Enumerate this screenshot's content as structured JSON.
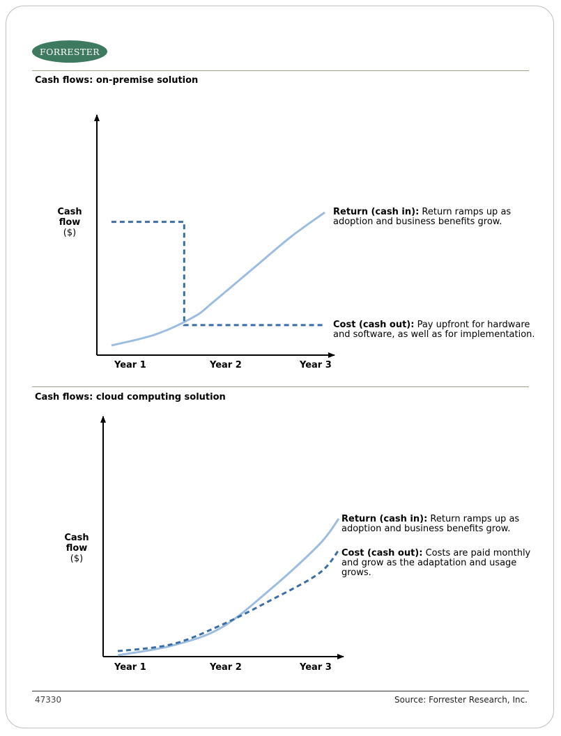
{
  "logo": {
    "text": "FORRESTER"
  },
  "colors": {
    "return": "#9dbde0",
    "cost": "#3a6ea5",
    "axis": "#000000",
    "brand": "#3e7a60"
  },
  "chart_data": [
    {
      "type": "line",
      "title": "Cash flows: on-premise solution",
      "ylabel_bold": "Cash flow",
      "ylabel_unit": "($)",
      "categories": [
        "Year 1",
        "Year 2",
        "Year 3"
      ],
      "xlim": [
        0.8,
        3.25
      ],
      "ylim": [
        0,
        100
      ],
      "series": [
        {
          "name": "Return (cash in)",
          "style": "solid",
          "x": [
            0.95,
            1.4,
            1.8,
            2.0,
            2.4,
            2.8,
            3.15
          ],
          "y": [
            2,
            10,
            23,
            34,
            58,
            82,
            100
          ]
        },
        {
          "name": "Cost (cash out)",
          "style": "dashed",
          "x": [
            0.95,
            1.7,
            1.7,
            3.15
          ],
          "y": [
            93,
            93,
            17,
            17
          ]
        }
      ],
      "annotations": [
        {
          "label": "Return (cash in):",
          "text_line1": " Return ramps up as",
          "text_line2": "adoption and business benefits grow."
        },
        {
          "label": "Cost (cash out):",
          "text_line1": " Pay upfront for hardware",
          "text_line2": "and software, as well as for implementation."
        }
      ]
    },
    {
      "type": "line",
      "title": "Cash flows: cloud computing solution",
      "ylabel_bold": "Cash flow",
      "ylabel_unit": "($)",
      "categories": [
        "Year 1",
        "Year 2",
        "Year 3"
      ],
      "xlim": [
        0.8,
        3.25
      ],
      "ylim": [
        0,
        100
      ],
      "series": [
        {
          "name": "Return (cash in)",
          "style": "solid",
          "x": [
            0.95,
            1.5,
            2.0,
            2.5,
            3.0,
            3.2
          ],
          "y": [
            0,
            7,
            20,
            48,
            81,
            100
          ]
        },
        {
          "name": "Cost (cash out)",
          "style": "dashed",
          "x": [
            0.95,
            1.5,
            2.0,
            2.5,
            3.0,
            3.2
          ],
          "y": [
            3,
            8,
            22,
            40,
            60,
            77
          ]
        }
      ],
      "annotations": [
        {
          "label": "Return (cash in):",
          "text_line1": " Return ramps up as",
          "text_line2": "adoption and business benefits grow."
        },
        {
          "label": "Cost (cash out):",
          "text_line1": " Costs are paid monthly",
          "text_line2": "and grow as the adaptation and usage",
          "text_line3": "grows."
        }
      ]
    }
  ],
  "footer": {
    "figure_id": "47330",
    "source": "Source: Forrester Research, Inc."
  }
}
